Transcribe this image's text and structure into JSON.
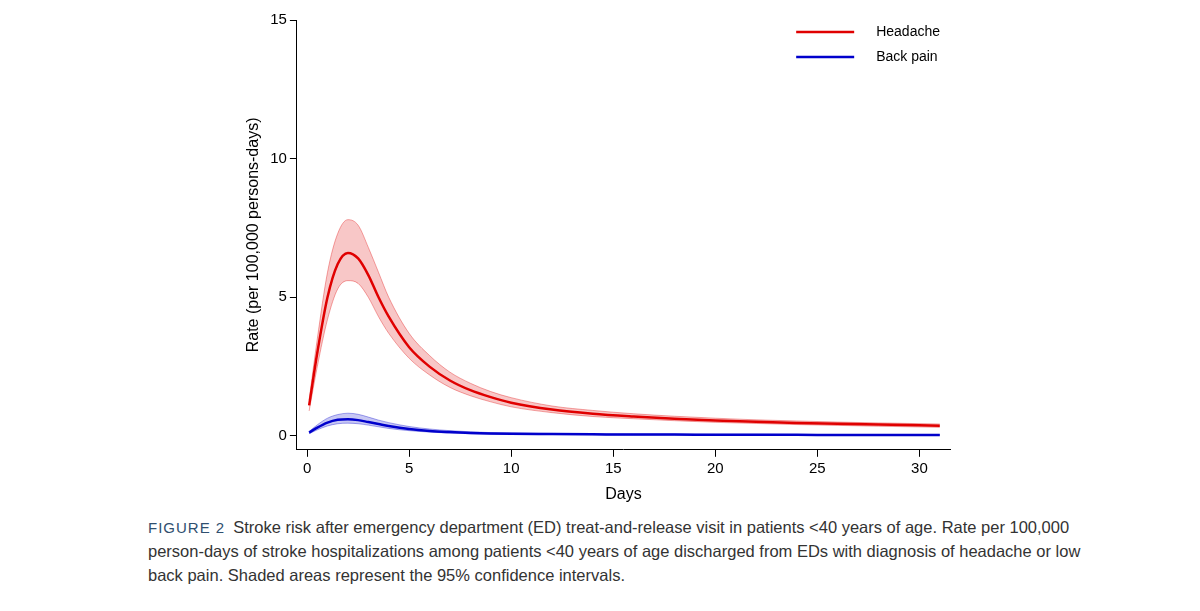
{
  "chart_data": {
    "type": "line",
    "caption_label": "FIGURE 2",
    "caption": "Stroke risk after emergency department (ED) treat-and-release visit in patients <40 years of age. Rate per 100,000 person-days of stroke hospitalizations among patients <40 years of age discharged from EDs with diagnosis of headache or low back pain. Shaded areas represent the 95% confidence intervals.",
    "x_label": "Days",
    "y_label": "Rate (per 100,000 persons-days)",
    "x": [
      0.1,
      0.5,
      1,
      1.5,
      2,
      2.5,
      3,
      3.5,
      4,
      5,
      6,
      7,
      8,
      9,
      10,
      12,
      14,
      16,
      18,
      20,
      22,
      24,
      26,
      28,
      31
    ],
    "series": [
      {
        "name": "Headache",
        "color": "#e00000",
        "values": [
          1.1,
          3.0,
          5.0,
          6.2,
          6.6,
          6.4,
          5.8,
          5.0,
          4.3,
          3.2,
          2.5,
          2.0,
          1.65,
          1.4,
          1.2,
          0.95,
          0.8,
          0.7,
          0.62,
          0.56,
          0.51,
          0.47,
          0.44,
          0.41,
          0.37
        ],
        "ci_lower": [
          0.9,
          2.5,
          4.2,
          5.3,
          5.6,
          5.5,
          5.0,
          4.3,
          3.7,
          2.8,
          2.2,
          1.75,
          1.45,
          1.23,
          1.05,
          0.84,
          0.7,
          0.62,
          0.55,
          0.49,
          0.45,
          0.41,
          0.38,
          0.35,
          0.31
        ],
        "ci_upper": [
          1.3,
          3.5,
          5.9,
          7.3,
          7.8,
          7.6,
          6.8,
          5.9,
          5.0,
          3.7,
          2.9,
          2.3,
          1.9,
          1.6,
          1.38,
          1.08,
          0.92,
          0.8,
          0.71,
          0.64,
          0.58,
          0.54,
          0.5,
          0.47,
          0.43
        ]
      },
      {
        "name": "Back pain",
        "color": "#0000cc",
        "values": [
          0.12,
          0.3,
          0.48,
          0.58,
          0.6,
          0.57,
          0.5,
          0.43,
          0.36,
          0.25,
          0.18,
          0.14,
          0.11,
          0.09,
          0.08,
          0.07,
          0.06,
          0.05,
          0.05,
          0.04,
          0.04,
          0.04,
          0.03,
          0.03,
          0.03
        ],
        "ci_lower": [
          0.08,
          0.22,
          0.36,
          0.44,
          0.46,
          0.44,
          0.39,
          0.33,
          0.27,
          0.19,
          0.14,
          0.1,
          0.08,
          0.06,
          0.05,
          0.05,
          0.04,
          0.03,
          0.03,
          0.03,
          0.02,
          0.02,
          0.02,
          0.02,
          0.02
        ],
        "ci_upper": [
          0.16,
          0.4,
          0.64,
          0.77,
          0.82,
          0.78,
          0.68,
          0.57,
          0.48,
          0.34,
          0.25,
          0.19,
          0.15,
          0.12,
          0.11,
          0.09,
          0.08,
          0.07,
          0.07,
          0.06,
          0.06,
          0.05,
          0.05,
          0.05,
          0.05
        ]
      }
    ],
    "xlim": [
      -0.5,
      31.5
    ],
    "xticks": [
      0,
      5,
      10,
      15,
      20,
      25,
      30
    ],
    "ylim": [
      -0.5,
      15
    ],
    "yticks": [
      0,
      5,
      10,
      15
    ],
    "grid": false,
    "legend": "upper right"
  }
}
